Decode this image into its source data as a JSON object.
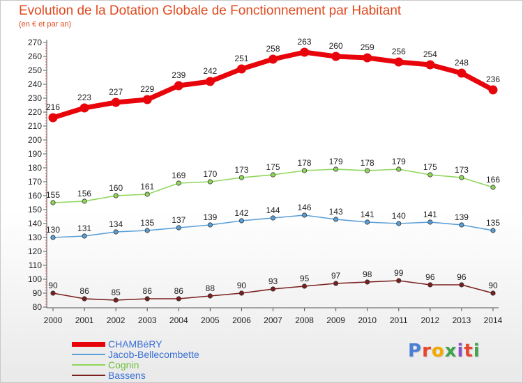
{
  "title": "Evolution de la Dotation Globale de Fonctionnement par Habitant",
  "subtitle": "(en € et par an)",
  "logo": {
    "text": "Proxiti",
    "letter_colors": [
      "#4a7fd6",
      "#e8452c",
      "#f2a900",
      "#3fa34d",
      "#8a4fc8",
      "#e8452c",
      "#3fa34d"
    ]
  },
  "chart_data": {
    "type": "line",
    "x": [
      "2000",
      "2001",
      "2002",
      "2003",
      "2004",
      "2005",
      "2006",
      "2007",
      "2008",
      "2009",
      "2010",
      "2011",
      "2012",
      "2013",
      "2014"
    ],
    "ylim": [
      80,
      270
    ],
    "y_ticks": [
      80,
      90,
      100,
      110,
      120,
      130,
      140,
      150,
      160,
      170,
      180,
      190,
      200,
      210,
      220,
      230,
      240,
      250,
      260,
      270
    ],
    "grid": false,
    "legend_position": "bottom-left",
    "series": [
      {
        "name": "CHAMBéRY",
        "color": "#e8040b",
        "values": [
          216,
          223,
          227,
          229,
          239,
          242,
          251,
          258,
          263,
          260,
          259,
          256,
          254,
          248,
          236
        ]
      },
      {
        "name": "Jacob-Bellecombette",
        "color": "#5a9ed6",
        "values": [
          130,
          131,
          134,
          135,
          137,
          139,
          142,
          144,
          146,
          143,
          141,
          140,
          141,
          139,
          135
        ]
      },
      {
        "name": "Cognin",
        "color": "#8fd65a",
        "values": [
          155,
          156,
          160,
          161,
          169,
          170,
          173,
          175,
          178,
          179,
          178,
          179,
          175,
          173,
          166
        ]
      },
      {
        "name": "Bassens",
        "color": "#7a1e1e",
        "values": [
          90,
          86,
          85,
          86,
          86,
          88,
          90,
          93,
          95,
          97,
          98,
          99,
          96,
          96,
          90
        ]
      }
    ]
  }
}
